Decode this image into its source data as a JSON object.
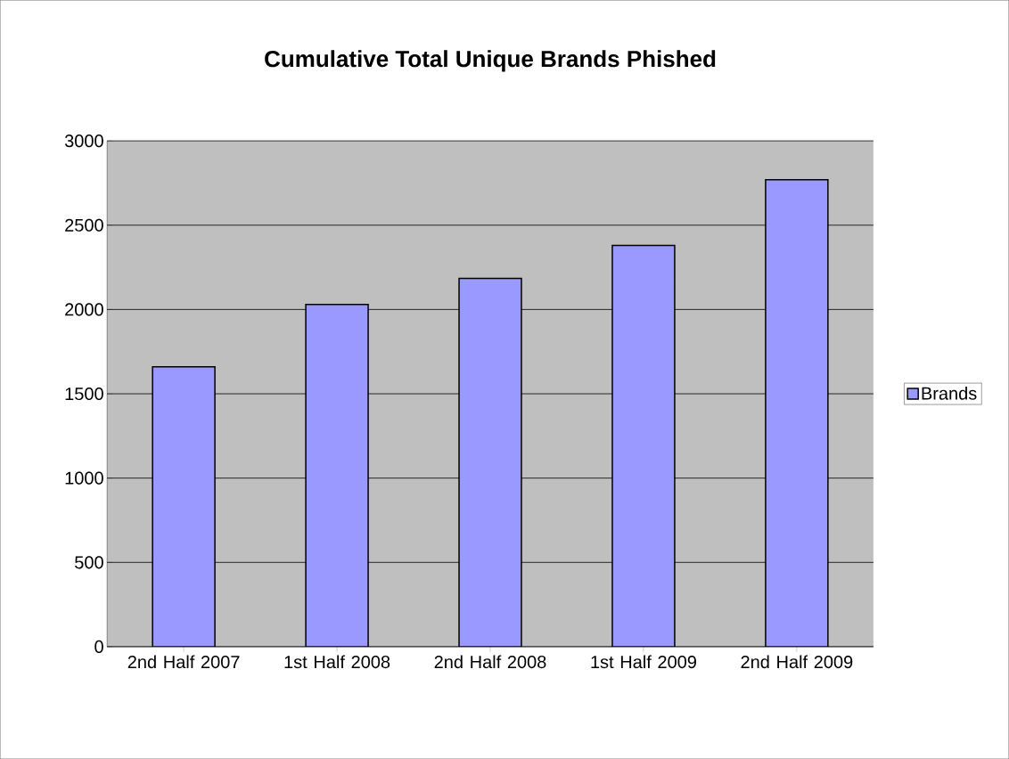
{
  "chart_data": {
    "type": "bar",
    "title": "Cumulative Total Unique Brands Phished",
    "categories": [
      "2nd Half 2007",
      "1st Half 2008",
      "2nd Half 2008",
      "1st Half 2009",
      "2nd Half 2009"
    ],
    "series": [
      {
        "name": "Brands",
        "color": "#9999ff",
        "values": [
          1660,
          2030,
          2185,
          2380,
          2770
        ]
      }
    ],
    "ylim": [
      0,
      3000
    ],
    "yticks": [
      0,
      500,
      1000,
      1500,
      2000,
      2500,
      3000
    ],
    "grid": "y",
    "legend": "right"
  }
}
